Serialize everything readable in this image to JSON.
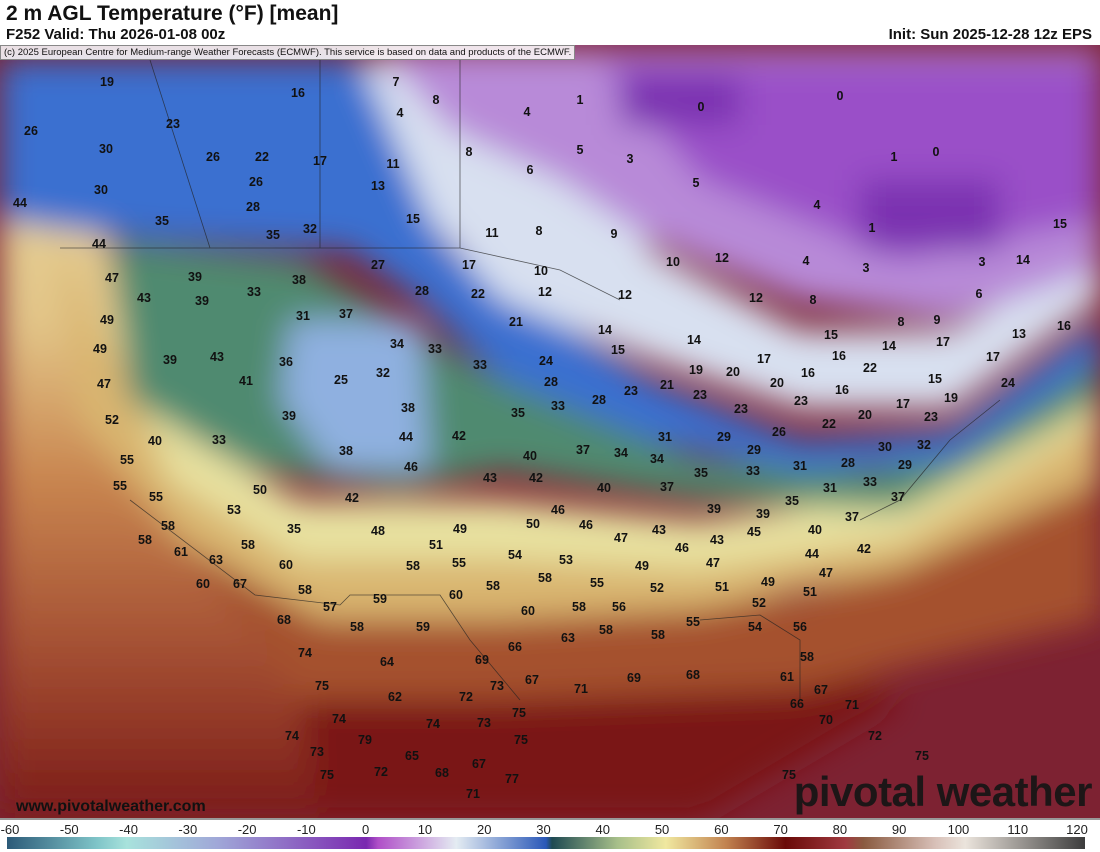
{
  "header": {
    "title": "2 m AGL Temperature (°F) [mean]",
    "valid": "F252 Valid: Thu 2026-01-08 00z",
    "init": "Init: Sun 2025-12-28 12z EPS",
    "copyright": "(c) 2025 European Centre for Medium-range Weather Forecasts (ECMWF). This service is based on data and products of the ECMWF."
  },
  "branding": {
    "website": "www.pivotalweather.com",
    "logo": "pivotal weather"
  },
  "colorbar": {
    "units": "°F",
    "ticks": [
      "-60",
      "-50",
      "-40",
      "-30",
      "-20",
      "-10",
      "0",
      "10",
      "20",
      "30",
      "40",
      "50",
      "60",
      "70",
      "80",
      "90",
      "100",
      "110",
      "120"
    ],
    "stops": [
      {
        "value": -60,
        "color": "#2c5a78"
      },
      {
        "value": -45,
        "color": "#7fc4c8"
      },
      {
        "value": -40,
        "color": "#a8e2dc"
      },
      {
        "value": -25,
        "color": "#a0a8d8"
      },
      {
        "value": -10,
        "color": "#8a5cc0"
      },
      {
        "value": 0,
        "color": "#7a28b0"
      },
      {
        "value": 2,
        "color": "#b050c8"
      },
      {
        "value": 15,
        "color": "#e4ecf2"
      },
      {
        "value": 30,
        "color": "#2a58b8"
      },
      {
        "value": 31,
        "color": "#1f4a52"
      },
      {
        "value": 42,
        "color": "#a8c08a"
      },
      {
        "value": 50,
        "color": "#f0e8a0"
      },
      {
        "value": 60,
        "color": "#c28350"
      },
      {
        "value": 70,
        "color": "#6a0a08"
      },
      {
        "value": 80,
        "color": "#a03a40"
      },
      {
        "value": 83,
        "color": "#8a5a40"
      },
      {
        "value": 95,
        "color": "#d8c0b8"
      },
      {
        "value": 100,
        "color": "#ebe4dc"
      },
      {
        "value": 120,
        "color": "#3c3c3c"
      }
    ]
  },
  "map_labels": [
    19,
    16,
    7,
    8,
    1,
    0,
    0,
    26,
    23,
    4,
    4,
    5,
    3,
    1,
    0,
    30,
    26,
    22,
    17,
    11,
    8,
    6,
    30,
    26,
    13,
    5,
    44,
    35,
    28,
    15,
    11,
    8,
    9,
    4,
    1,
    15,
    35,
    32,
    44,
    47,
    39,
    38,
    27,
    17,
    10,
    10,
    12,
    4,
    3,
    3,
    14,
    43,
    39,
    33,
    28,
    22,
    12,
    12,
    12,
    8,
    6,
    49,
    31,
    37,
    21,
    8,
    9,
    13,
    16,
    49,
    39,
    43,
    36,
    34,
    33,
    14,
    14,
    15,
    16,
    14,
    17,
    17,
    15,
    47,
    41,
    25,
    32,
    33,
    24,
    28,
    21,
    19,
    20,
    17,
    20,
    16,
    22,
    15,
    24,
    52,
    33,
    39,
    38,
    35,
    33,
    28,
    23,
    23,
    23,
    23,
    16,
    20,
    17,
    19,
    23,
    40,
    44,
    42,
    37,
    34,
    34,
    31,
    29,
    26,
    22,
    32,
    30,
    29,
    28,
    55,
    38,
    46,
    40,
    43,
    42,
    29,
    35,
    33,
    31,
    33,
    55,
    50,
    42,
    40,
    37,
    31,
    37,
    55,
    53,
    46,
    39,
    39,
    35,
    58,
    35,
    48,
    49,
    50,
    46,
    43,
    43,
    40,
    37,
    58,
    58,
    51,
    47,
    46,
    45,
    44,
    42,
    61,
    63,
    60,
    55,
    54,
    53,
    49,
    47,
    47,
    60,
    67,
    58,
    58,
    58,
    58,
    55,
    52,
    51,
    49,
    51,
    57,
    59,
    60,
    60,
    58,
    56,
    52,
    68,
    58,
    59,
    63,
    58,
    58,
    55,
    54,
    56,
    74,
    64,
    66,
    69,
    58,
    75,
    73,
    67,
    71,
    69,
    68,
    61,
    67,
    62,
    72,
    66,
    71,
    74,
    74,
    73,
    75,
    70,
    74,
    79,
    75,
    72,
    73,
    65,
    67,
    75,
    75,
    72,
    68,
    77,
    75,
    71
  ]
}
